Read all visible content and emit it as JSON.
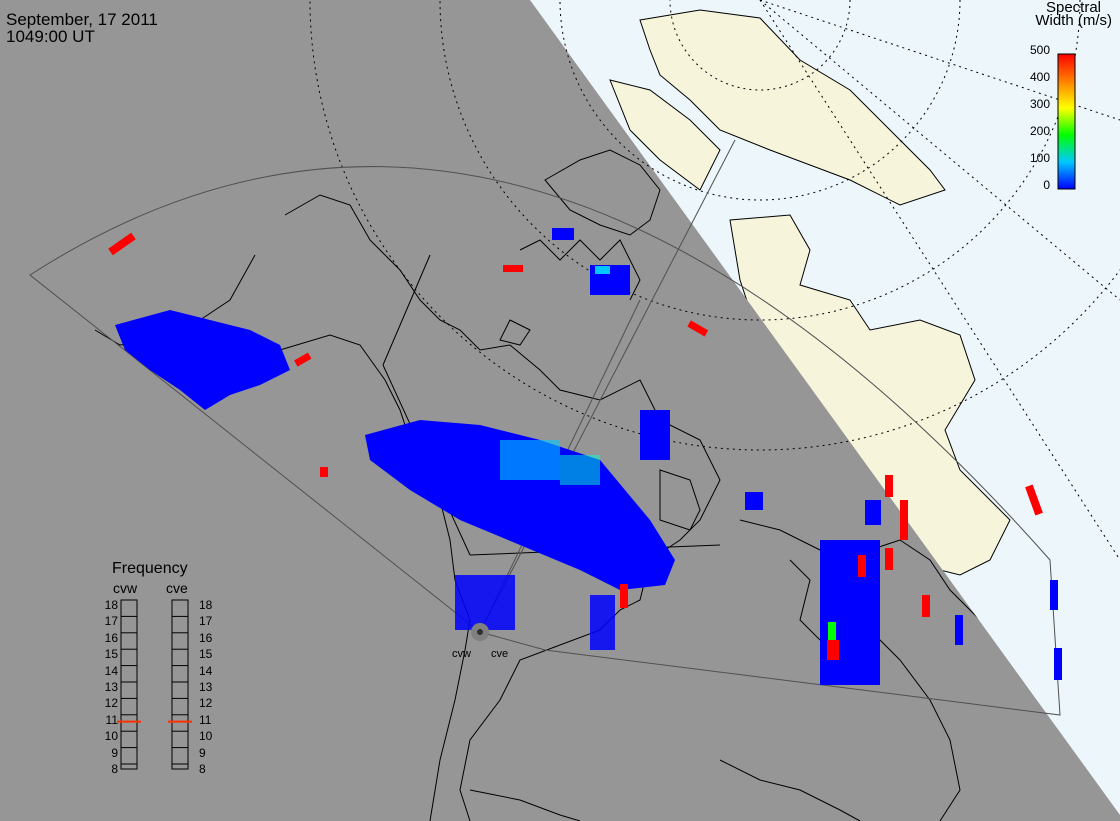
{
  "header": {
    "date": "September, 17 2011",
    "time": "1049:00 UT"
  },
  "colorbar": {
    "title_line1": "Spectral",
    "title_line2": "Width (m/s)",
    "ticks": [
      "500",
      "400",
      "300",
      "200",
      "100",
      "0"
    ],
    "colors": [
      "#0000ff",
      "#00ffff",
      "#00ff00",
      "#ffff00",
      "#ff8000",
      "#ff0000"
    ]
  },
  "frequency": {
    "title": "Frequency",
    "sites": [
      "cvw",
      "cve"
    ],
    "scale": [
      "18",
      "17",
      "16",
      "15",
      "14",
      "13",
      "12",
      "11",
      "10",
      "9",
      "8"
    ],
    "values_mhz": [
      10.8,
      10.8
    ]
  },
  "radar_sites": [
    "cvw",
    "cve"
  ],
  "colors": {
    "night": "#969696",
    "ocean": "#ecf6fb",
    "land": "#f7f4dc",
    "echo_low": "#0000ff",
    "echo_high": "#ff0000"
  }
}
